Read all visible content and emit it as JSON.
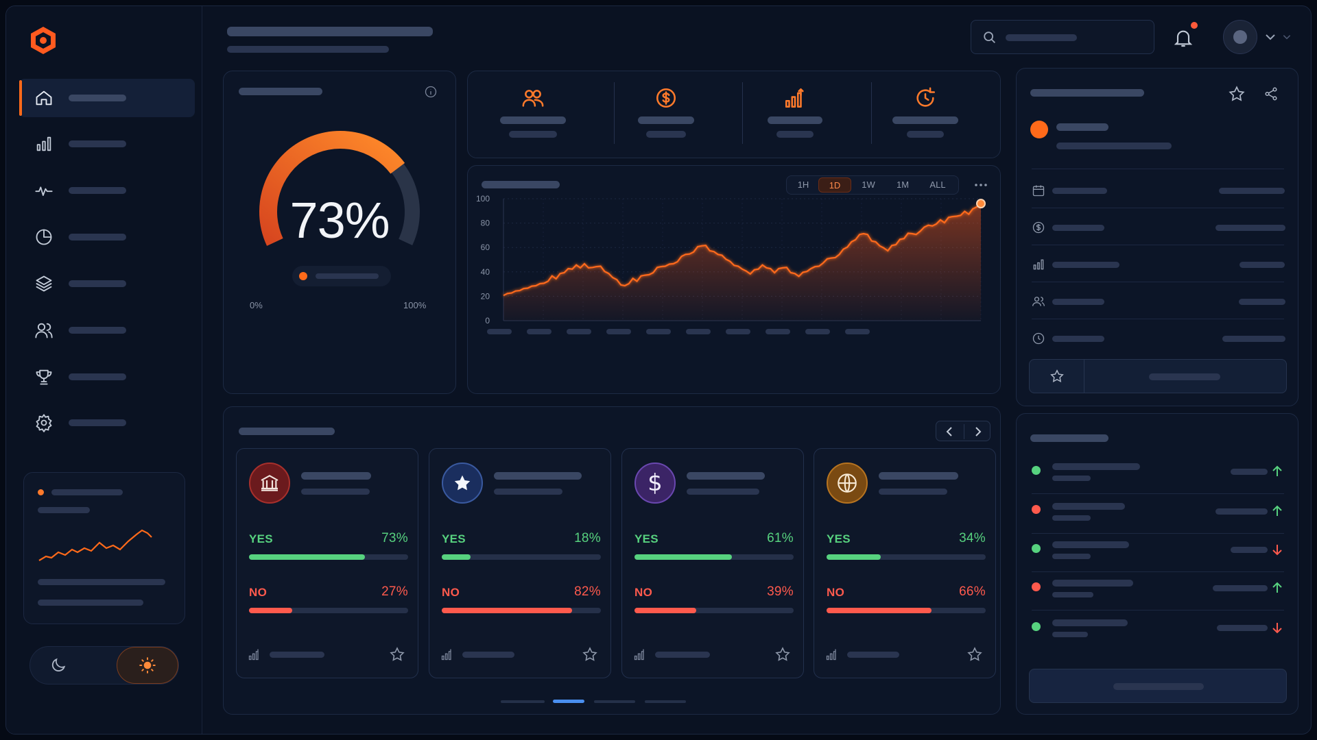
{
  "gauge": {
    "value_label": "73%",
    "value": 73,
    "min_label": "0%",
    "max_label": "100%",
    "colors": {
      "start": "#d7461f",
      "end": "#ff8a2a",
      "track": "#2a3448"
    }
  },
  "chart_data": {
    "type": "area",
    "title": "",
    "xlabel": "",
    "ylabel": "",
    "ylim": [
      0,
      100
    ],
    "y_ticks": [
      "100",
      "80",
      "60",
      "40",
      "20",
      "0"
    ],
    "time_ranges": [
      "1H",
      "1D",
      "1W",
      "1M",
      "ALL"
    ],
    "selected_range": "1D",
    "grid": true,
    "color": "#ff6a1a",
    "series": [
      {
        "values": [
          20,
          23,
          22,
          25,
          24,
          27,
          26,
          29,
          28,
          31,
          30,
          33,
          36,
          35,
          38,
          40,
          42,
          43,
          45,
          44,
          46,
          44,
          43,
          45,
          44,
          41,
          38,
          36,
          33,
          30,
          28,
          31,
          34,
          33,
          36,
          38,
          37,
          40,
          43,
          45,
          44,
          47,
          46,
          49,
          52,
          55,
          54,
          57,
          60,
          62,
          61,
          58,
          56,
          55,
          53,
          51,
          48,
          46,
          44,
          43,
          40,
          39,
          41,
          43,
          45,
          44,
          42,
          40,
          42,
          44,
          43,
          40,
          38,
          37,
          39,
          41,
          42,
          45,
          44,
          48,
          50,
          52,
          51,
          55,
          58,
          61,
          64,
          67,
          70,
          72,
          70,
          66,
          64,
          62,
          59,
          58,
          61,
          63,
          66,
          68,
          71,
          72,
          70,
          74,
          76,
          79,
          77,
          80,
          82,
          81,
          84,
          86,
          85,
          87,
          89,
          88,
          91,
          94,
          96
        ]
      }
    ]
  },
  "proposals": [
    {
      "yes_label": "YES",
      "yes_pct_label": "73%",
      "yes": 73,
      "no_label": "NO",
      "no_pct_label": "27%",
      "no": 27
    },
    {
      "yes_label": "YES",
      "yes_pct_label": "18%",
      "yes": 18,
      "no_label": "NO",
      "no_pct_label": "82%",
      "no": 82
    },
    {
      "yes_label": "YES",
      "yes_pct_label": "61%",
      "yes": 61,
      "no_label": "NO",
      "no_pct_label": "39%",
      "no": 39
    },
    {
      "yes_label": "YES",
      "yes_pct_label": "34%",
      "yes": 34,
      "no_label": "NO",
      "no_pct_label": "66%",
      "no": 66
    }
  ],
  "icons": {
    "nav": [
      "home-icon",
      "bar-chart-icon",
      "activity-icon",
      "pie-chart-icon",
      "layers-icon",
      "users-icon",
      "trophy-icon",
      "settings-icon"
    ],
    "stats": [
      "users-icon",
      "dollar-circle-icon",
      "bar-chart-up-icon",
      "refresh-clock-icon"
    ],
    "proposals": [
      "bank-icon",
      "star-icon",
      "dollar-icon",
      "globe-icon"
    ]
  },
  "colors": {
    "accent": "#ff6a1a",
    "yes": "#57d27f",
    "no": "#ff5a4d",
    "pagination_active": "#4a8ff0"
  }
}
